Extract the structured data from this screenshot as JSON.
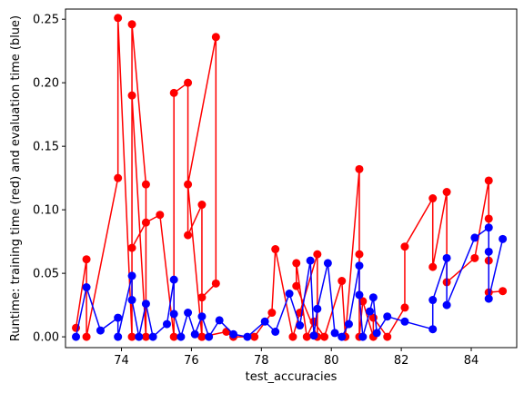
{
  "chart_data": {
    "type": "line",
    "title": "",
    "xlabel": "test_accuracies",
    "ylabel": "Runtime: training time (red) and evaluation time (blue)",
    "xlim": [
      72.4,
      85.3
    ],
    "ylim": [
      -0.0085,
      0.258
    ],
    "xticks": [
      74,
      76,
      78,
      80,
      82,
      84
    ],
    "xtick_labels": [
      "74",
      "76",
      "78",
      "80",
      "82",
      "84"
    ],
    "yticks": [
      0.0,
      0.05,
      0.1,
      0.15,
      0.2,
      0.25
    ],
    "ytick_labels": [
      "0.00",
      "0.05",
      "0.10",
      "0.15",
      "0.20",
      "0.25"
    ],
    "grid": false,
    "series": [
      {
        "color": "#ff0000",
        "x": [
          72.7,
          73.0,
          73.0,
          73.9,
          73.9,
          74.3,
          74.3,
          74.7,
          74.7,
          74.3,
          74.3,
          74.7,
          75.1,
          75.5,
          75.5,
          75.9,
          75.9,
          76.3,
          76.3,
          75.9,
          76.7,
          76.7,
          76.3,
          76.3,
          77.0,
          77.2,
          77.8,
          78.3,
          78.4,
          78.9,
          79.1,
          79.6,
          79.6,
          79.0,
          79.0,
          79.3,
          79.5,
          79.8,
          80.3,
          80.4,
          80.8,
          80.8,
          80.8,
          80.9,
          81.2,
          81.2,
          81.6,
          82.1,
          82.1,
          82.9,
          82.9,
          83.3,
          83.3,
          84.1,
          84.5,
          84.5,
          84.5,
          84.5,
          84.9
        ],
        "y": [
          0.007,
          0.061,
          0.0,
          0.125,
          0.251,
          0.0,
          0.246,
          0.12,
          0.0,
          0.19,
          0.07,
          0.09,
          0.096,
          0.0,
          0.192,
          0.2,
          0.08,
          0.104,
          0.0,
          0.12,
          0.236,
          0.042,
          0.031,
          0.0,
          0.004,
          0.0,
          0.0,
          0.019,
          0.069,
          0.0,
          0.019,
          0.065,
          0.0,
          0.04,
          0.058,
          0.0,
          0.012,
          0.0,
          0.044,
          0.0,
          0.132,
          0.065,
          0.0,
          0.028,
          0.0,
          0.015,
          0.0,
          0.023,
          0.071,
          0.109,
          0.055,
          0.114,
          0.043,
          0.062,
          0.123,
          0.093,
          0.06,
          0.035,
          0.036
        ]
      },
      {
        "color": "#0000ff",
        "x": [
          72.7,
          73.0,
          73.4,
          73.9,
          73.9,
          74.3,
          74.3,
          74.5,
          74.7,
          74.9,
          75.3,
          75.5,
          75.5,
          75.7,
          75.9,
          76.1,
          76.3,
          76.5,
          76.8,
          77.2,
          77.6,
          78.1,
          78.4,
          78.8,
          79.1,
          79.4,
          79.5,
          79.6,
          79.9,
          80.1,
          80.3,
          80.5,
          80.8,
          80.8,
          80.9,
          81.1,
          81.2,
          81.3,
          81.6,
          82.1,
          82.9,
          82.9,
          83.3,
          83.3,
          84.1,
          84.5,
          84.5,
          84.5,
          84.9
        ],
        "y": [
          0.0,
          0.039,
          0.005,
          0.015,
          0.0,
          0.048,
          0.029,
          0.0,
          0.026,
          0.0,
          0.01,
          0.045,
          0.018,
          0.0,
          0.019,
          0.002,
          0.016,
          0.0,
          0.013,
          0.002,
          0.0,
          0.012,
          0.004,
          0.034,
          0.009,
          0.06,
          0.001,
          0.022,
          0.058,
          0.003,
          0.0,
          0.01,
          0.056,
          0.033,
          0.0,
          0.02,
          0.031,
          0.003,
          0.016,
          0.012,
          0.006,
          0.029,
          0.062,
          0.025,
          0.078,
          0.086,
          0.067,
          0.03,
          0.077
        ]
      }
    ]
  }
}
